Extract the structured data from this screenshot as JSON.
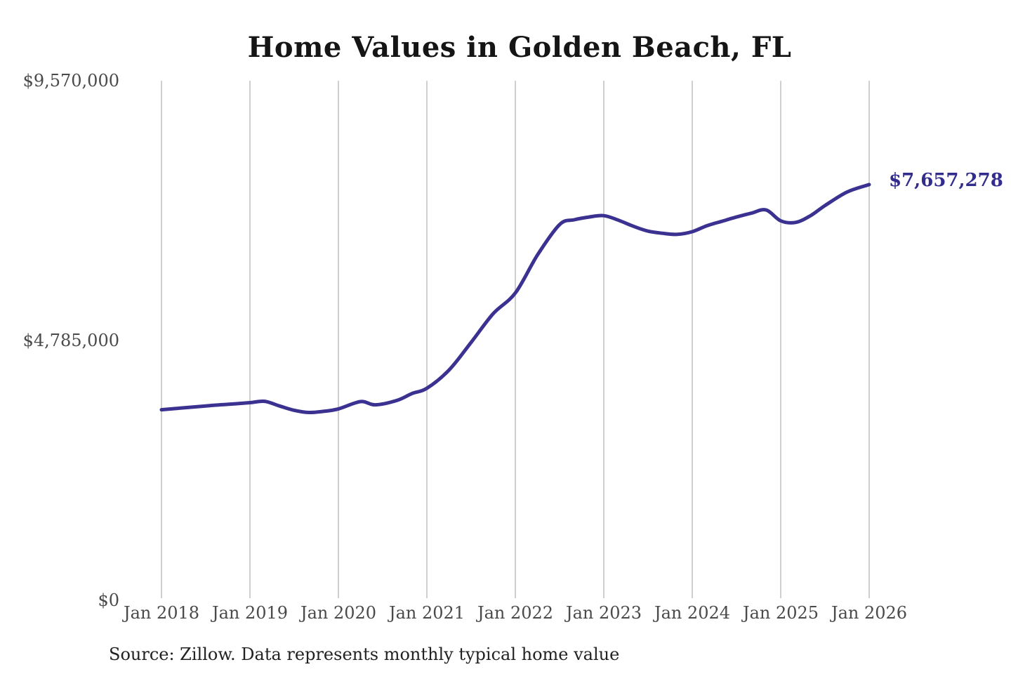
{
  "title": "Home Values in Golden Beach, FL",
  "source_note": "Source: Zillow. Data represents monthly typical home value",
  "colors": {
    "line": "#3a3190",
    "latest_label": "#322c8d",
    "title_text": "#151515",
    "axis_text": "#4a4a4a",
    "gridline": "#cfcfcf",
    "source_text": "#222222",
    "background": "#ffffff"
  },
  "chart_data": {
    "type": "line",
    "title": "Home Values in Golden Beach, FL",
    "series_name": "Monthly typical home value",
    "x_tick_labels": [
      "Jan 2018",
      "Jan 2019",
      "Jan 2020",
      "Jan 2021",
      "Jan 2022",
      "Jan 2023",
      "Jan 2024",
      "Jan 2025",
      "Jan 2026"
    ],
    "y_ticks": [
      {
        "value": 0,
        "label": "$0"
      },
      {
        "value": 4785000,
        "label": "$4,785,000"
      },
      {
        "value": 9570000,
        "label": "$9,570,000"
      }
    ],
    "ylim": [
      0,
      9570000
    ],
    "x_range": [
      "2018-01",
      "2026-01"
    ],
    "grid": "vertical-only",
    "legend": "none",
    "latest_value": 7657278,
    "latest_value_label": "$7,657,278",
    "points": [
      {
        "date": "2018-01",
        "value": 3510000
      },
      {
        "date": "2018-04",
        "value": 3545000
      },
      {
        "date": "2018-07",
        "value": 3580000
      },
      {
        "date": "2018-10",
        "value": 3610000
      },
      {
        "date": "2019-01",
        "value": 3640000
      },
      {
        "date": "2019-03",
        "value": 3665000
      },
      {
        "date": "2019-05",
        "value": 3580000
      },
      {
        "date": "2019-07",
        "value": 3500000
      },
      {
        "date": "2019-09",
        "value": 3460000
      },
      {
        "date": "2019-11",
        "value": 3480000
      },
      {
        "date": "2020-01",
        "value": 3525000
      },
      {
        "date": "2020-04",
        "value": 3660000
      },
      {
        "date": "2020-06",
        "value": 3600000
      },
      {
        "date": "2020-09",
        "value": 3685000
      },
      {
        "date": "2020-11",
        "value": 3810000
      },
      {
        "date": "2021-01",
        "value": 3905000
      },
      {
        "date": "2021-04",
        "value": 4240000
      },
      {
        "date": "2021-07",
        "value": 4750000
      },
      {
        "date": "2021-10",
        "value": 5280000
      },
      {
        "date": "2022-01",
        "value": 5660000
      },
      {
        "date": "2022-04",
        "value": 6360000
      },
      {
        "date": "2022-07",
        "value": 6920000
      },
      {
        "date": "2022-09",
        "value": 7010000
      },
      {
        "date": "2022-11",
        "value": 7060000
      },
      {
        "date": "2023-01",
        "value": 7085000
      },
      {
        "date": "2023-03",
        "value": 7000000
      },
      {
        "date": "2023-05",
        "value": 6890000
      },
      {
        "date": "2023-07",
        "value": 6800000
      },
      {
        "date": "2023-09",
        "value": 6760000
      },
      {
        "date": "2023-11",
        "value": 6740000
      },
      {
        "date": "2024-01",
        "value": 6790000
      },
      {
        "date": "2024-03",
        "value": 6900000
      },
      {
        "date": "2024-05",
        "value": 6980000
      },
      {
        "date": "2024-07",
        "value": 7060000
      },
      {
        "date": "2024-09",
        "value": 7130000
      },
      {
        "date": "2024-11",
        "value": 7190000
      },
      {
        "date": "2025-01",
        "value": 6990000
      },
      {
        "date": "2025-03",
        "value": 6960000
      },
      {
        "date": "2025-05",
        "value": 7080000
      },
      {
        "date": "2025-07",
        "value": 7270000
      },
      {
        "date": "2025-10",
        "value": 7520000
      },
      {
        "date": "2026-01",
        "value": 7657278
      }
    ]
  }
}
